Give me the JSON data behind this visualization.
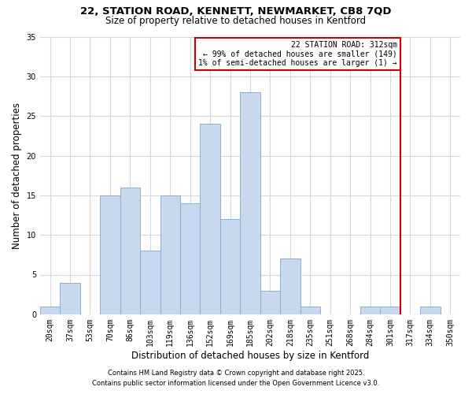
{
  "title1": "22, STATION ROAD, KENNETT, NEWMARKET, CB8 7QD",
  "title2": "Size of property relative to detached houses in Kentford",
  "xlabel": "Distribution of detached houses by size in Kentford",
  "ylabel": "Number of detached properties",
  "bar_labels": [
    "20sqm",
    "37sqm",
    "53sqm",
    "70sqm",
    "86sqm",
    "103sqm",
    "119sqm",
    "136sqm",
    "152sqm",
    "169sqm",
    "185sqm",
    "202sqm",
    "218sqm",
    "235sqm",
    "251sqm",
    "268sqm",
    "284sqm",
    "301sqm",
    "317sqm",
    "334sqm",
    "350sqm"
  ],
  "bar_values": [
    1,
    4,
    0,
    15,
    16,
    8,
    15,
    14,
    24,
    12,
    28,
    3,
    7,
    1,
    0,
    0,
    1,
    1,
    0,
    1,
    0
  ],
  "bar_color": "#c8d8ee",
  "bar_edgecolor": "#90aed0",
  "bar_width": 1.0,
  "vline_x_index": 17.5,
  "vline_color": "#cc0000",
  "annotation_text": "22 STATION ROAD: 312sqm\n← 99% of detached houses are smaller (149)\n1% of semi-detached houses are larger (1) →",
  "annotation_box_color": "#ffffff",
  "annotation_box_edgecolor": "#cc0000",
  "ylim": [
    0,
    35
  ],
  "yticks": [
    0,
    5,
    10,
    15,
    20,
    25,
    30,
    35
  ],
  "footer1": "Contains HM Land Registry data © Crown copyright and database right 2025.",
  "footer2": "Contains public sector information licensed under the Open Government Licence v3.0.",
  "bg_color": "#ffffff",
  "grid_color": "#d8d8d8",
  "title1_fontsize": 9.5,
  "title2_fontsize": 8.5,
  "xlabel_fontsize": 8.5,
  "ylabel_fontsize": 8.5,
  "tick_fontsize": 7.0,
  "annot_fontsize": 7.0,
  "footer_fontsize": 6.0
}
